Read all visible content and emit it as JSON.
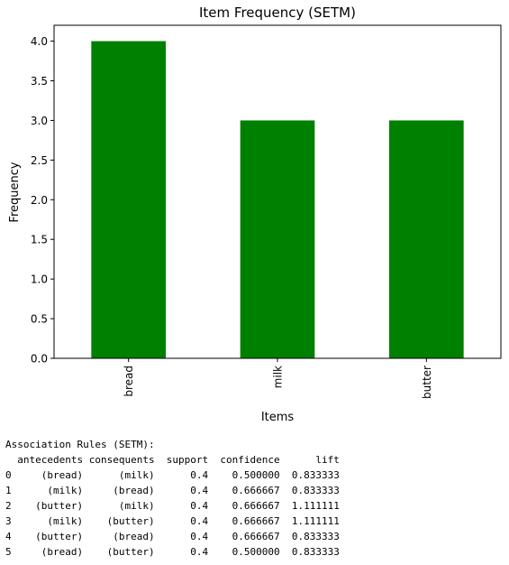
{
  "chart_data": {
    "type": "bar",
    "title": "Item Frequency (SETM)",
    "xlabel": "Items",
    "ylabel": "Frequency",
    "categories": [
      "bread",
      "milk",
      "butter"
    ],
    "values": [
      4,
      3,
      3
    ],
    "ylim": [
      0,
      4.2
    ],
    "yticks": [
      "0.0",
      "0.5",
      "1.0",
      "1.5",
      "2.0",
      "2.5",
      "3.0",
      "3.5",
      "4.0"
    ],
    "bar_color": "#008000",
    "grid": false,
    "legend": "none"
  },
  "rules_output": {
    "heading": "Association Rules (SETM):",
    "header_line": "  antecedents consequents  support  confidence      lift",
    "rows": [
      "0     (bread)      (milk)      0.4    0.500000  0.833333",
      "1      (milk)     (bread)      0.4    0.666667  0.833333",
      "2    (butter)      (milk)      0.4    0.666667  1.111111",
      "3      (milk)    (butter)      0.4    0.666667  1.111111",
      "4    (butter)     (bread)      0.4    0.666667  0.833333",
      "5     (bread)    (butter)      0.4    0.500000  0.833333"
    ]
  }
}
